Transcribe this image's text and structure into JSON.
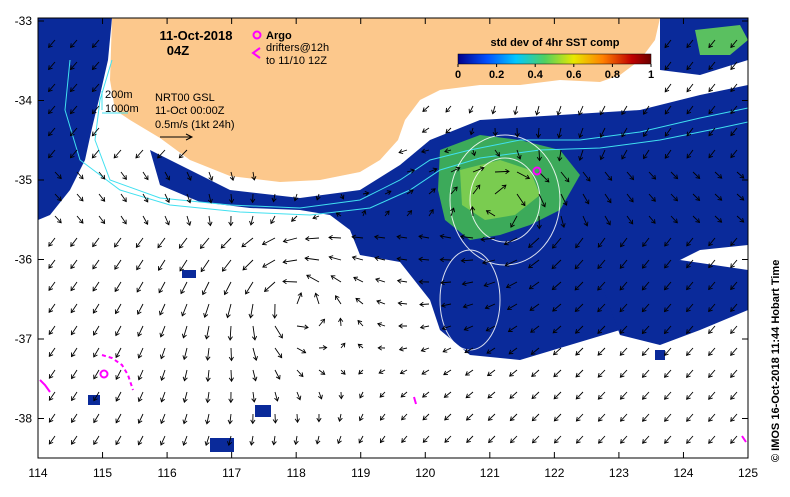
{
  "header": {
    "date": "11-Oct-2018",
    "time": "04Z"
  },
  "legend_argo": {
    "argo_label": "Argo",
    "drifters_label": "drifters@12h",
    "drifters_sub": "to 11/10 12Z"
  },
  "legend_isobaths": {
    "shallow": "200m",
    "deep": "1000m"
  },
  "legend_current": {
    "model": "NRT00 GSL",
    "time": "11-Oct 00:00Z",
    "scale": "0.5m/s (1kt 24h)"
  },
  "colorbar": {
    "title": "std dev of 4hr SST comp",
    "ticks": [
      "0",
      "0.2",
      "0.4",
      "0.6",
      "0.8",
      "1"
    ],
    "colors": [
      "#00008b",
      "#0050ff",
      "#00c8ff",
      "#50d060",
      "#e8e800",
      "#ff8000",
      "#c00000",
      "#6a0000"
    ]
  },
  "axes": {
    "lon_ticks": [
      "114",
      "115",
      "116",
      "117",
      "118",
      "119",
      "120",
      "121",
      "122",
      "123",
      "124",
      "125"
    ],
    "lat_ticks": [
      "-33",
      "-34",
      "-35",
      "-36",
      "-37",
      "-38"
    ]
  },
  "credit": "© IMOS 16-Oct-2018 11:44 Hobart Time",
  "colors": {
    "land": "#fcc88c",
    "isobath": "#40e0f0",
    "sst_low": "#0a2a9a",
    "marker": "#ff00ff"
  }
}
